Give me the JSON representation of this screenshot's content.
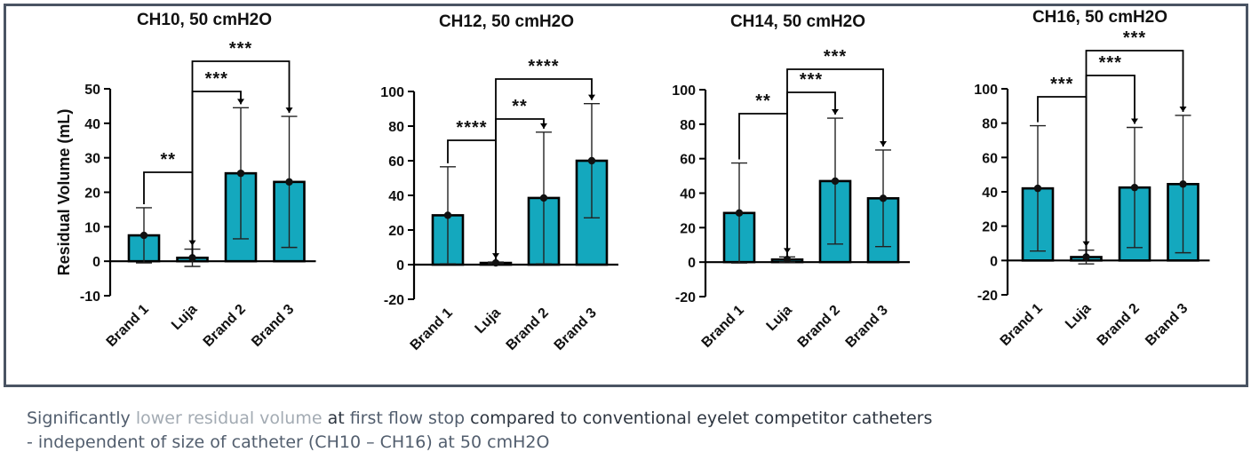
{
  "chart_data": [
    {
      "type": "bar",
      "title": "CH10, 50 cmH2O",
      "ylabel": "Residual Volume (mL)",
      "categories": [
        "Brand 1",
        "Luja",
        "Brand 2",
        "Brand 3"
      ],
      "values": [
        7.5,
        1,
        25.5,
        23
      ],
      "error": [
        8,
        2.5,
        19,
        19
      ],
      "ylim": [
        -10,
        50
      ],
      "yticks": [
        -10,
        0,
        10,
        20,
        30,
        40,
        50
      ],
      "significance": [
        {
          "from": 0,
          "to": 1,
          "label": "**"
        },
        {
          "from": 1,
          "to": 2,
          "label": "***"
        },
        {
          "from": 1,
          "to": 3,
          "label": "***"
        }
      ]
    },
    {
      "type": "bar",
      "title": "CH12, 50 cmH2O",
      "ylabel": "",
      "categories": [
        "Brand 1",
        "Luja",
        "Brand 2",
        "Brand 3"
      ],
      "values": [
        28.5,
        1,
        38.5,
        60
      ],
      "error": [
        28,
        0.5,
        38,
        33
      ],
      "ylim": [
        -20,
        100
      ],
      "yticks": [
        -20,
        0,
        20,
        40,
        60,
        80,
        100
      ],
      "significance": [
        {
          "from": 0,
          "to": 1,
          "label": "****"
        },
        {
          "from": 1,
          "to": 2,
          "label": "**"
        },
        {
          "from": 1,
          "to": 3,
          "label": "****"
        }
      ]
    },
    {
      "type": "bar",
      "title": "CH14, 50 cmH2O",
      "ylabel": "",
      "categories": [
        "Brand 1",
        "Luja",
        "Brand 2",
        "Brand 3"
      ],
      "values": [
        28.5,
        1.5,
        47,
        37
      ],
      "error": [
        29,
        1.5,
        36.5,
        28
      ],
      "ylim": [
        -20,
        100
      ],
      "yticks": [
        -20,
        0,
        20,
        40,
        60,
        80,
        100
      ],
      "significance": [
        {
          "from": 0,
          "to": 1,
          "label": "**"
        },
        {
          "from": 1,
          "to": 2,
          "label": "***"
        },
        {
          "from": 1,
          "to": 3,
          "label": "***"
        }
      ]
    },
    {
      "type": "bar",
      "title": "CH16, 50 cmH2O",
      "ylabel": "",
      "categories": [
        "Brand 1",
        "Luja",
        "Brand 2",
        "Brand 3"
      ],
      "values": [
        42,
        2,
        42.5,
        44.5
      ],
      "error": [
        36.5,
        4,
        35,
        40
      ],
      "ylim": [
        -20,
        100
      ],
      "yticks": [
        -20,
        0,
        20,
        40,
        60,
        80,
        100
      ],
      "significance": [
        {
          "from": 0,
          "to": 1,
          "label": "***"
        },
        {
          "from": 1,
          "to": 2,
          "label": "***"
        },
        {
          "from": 1,
          "to": 3,
          "label": "***"
        }
      ]
    }
  ],
  "colors": {
    "bar": "#14a8be",
    "frame": "#4a5463"
  },
  "caption": {
    "line1_a": "Significantly ",
    "line1_b": "lower residual volume",
    "line1_c": " at ",
    "line1_d": "first flow stop",
    "line1_e": " compared to conventional eyelet competitor catheters",
    "line2": "-  independent of size of catheter (CH10 – CH16) at 50 cmH2O"
  }
}
